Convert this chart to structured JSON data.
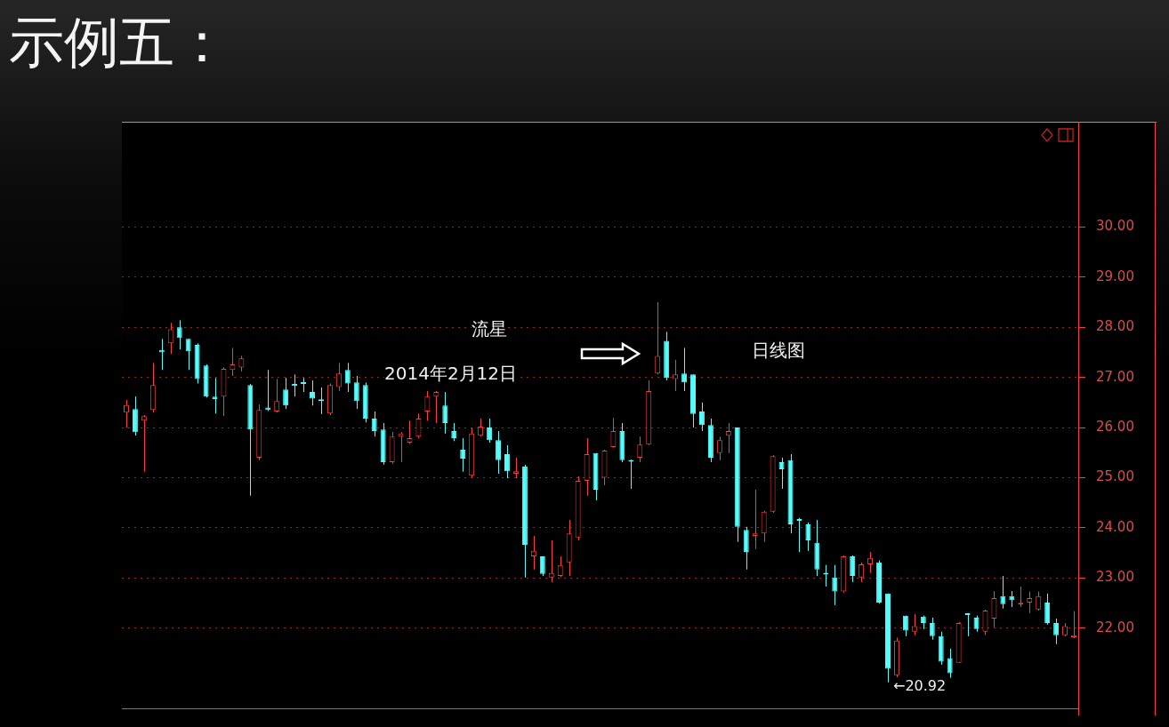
{
  "chart_data": {
    "type": "candlestick",
    "title": "示例五：",
    "annotations": [
      "流星",
      "2014年2月12日",
      "日线图",
      "←20.92"
    ],
    "categories": [
      null,
      null,
      null,
      null,
      null,
      null,
      null,
      null,
      null,
      null,
      null,
      null,
      null,
      null,
      null,
      null,
      null,
      null,
      null,
      null,
      null,
      null,
      null,
      null,
      null,
      null,
      null,
      null,
      null,
      null,
      null,
      null,
      null,
      null,
      null,
      null,
      null,
      null,
      null,
      null,
      null,
      null,
      null,
      null,
      null,
      null,
      null,
      null,
      null,
      null,
      null,
      null,
      null,
      null,
      null,
      null,
      null,
      null,
      null,
      null,
      null,
      null,
      null,
      null,
      null,
      null,
      null,
      null,
      null,
      null,
      null,
      null,
      null,
      null,
      null,
      null,
      null,
      null,
      null,
      null,
      null,
      null,
      null,
      null,
      null,
      null,
      null,
      null,
      null,
      null,
      null,
      null,
      null,
      null,
      null,
      null,
      null,
      null,
      null,
      null,
      null,
      null,
      null,
      null,
      null,
      null,
      null,
      null
    ],
    "ohlc": [
      [
        26.3,
        26.55,
        26.0,
        26.45
      ],
      [
        26.37,
        26.62,
        25.84,
        25.91
      ],
      [
        26.14,
        26.25,
        25.12,
        26.23
      ],
      [
        26.35,
        27.29,
        26.3,
        26.85
      ],
      [
        27.55,
        27.77,
        27.15,
        27.5
      ],
      [
        27.68,
        28.09,
        27.47,
        27.96
      ],
      [
        28.0,
        28.14,
        27.56,
        27.79
      ],
      [
        27.77,
        27.77,
        27.15,
        27.52
      ],
      [
        27.65,
        27.68,
        26.88,
        26.97
      ],
      [
        27.24,
        27.26,
        26.6,
        26.62
      ],
      [
        26.62,
        26.99,
        26.28,
        26.57
      ],
      [
        26.62,
        27.2,
        26.23,
        27.17
      ],
      [
        27.15,
        27.59,
        27.03,
        27.26
      ],
      [
        27.2,
        27.43,
        27.12,
        27.38
      ],
      [
        26.85,
        26.87,
        24.64,
        25.96
      ],
      [
        25.4,
        26.46,
        25.35,
        26.35
      ],
      [
        26.4,
        27.15,
        26.33,
        26.35
      ],
      [
        26.32,
        26.97,
        26.3,
        26.53
      ],
      [
        26.76,
        26.99,
        26.37,
        26.44
      ],
      [
        26.87,
        27.06,
        26.62,
        26.83
      ],
      [
        26.89,
        26.99,
        26.71,
        26.87
      ],
      [
        26.71,
        26.94,
        26.44,
        26.58
      ],
      [
        26.56,
        26.8,
        26.27,
        26.53
      ],
      [
        26.28,
        26.88,
        26.25,
        26.85
      ],
      [
        26.81,
        27.29,
        26.73,
        27.08
      ],
      [
        27.15,
        27.29,
        26.71,
        26.88
      ],
      [
        26.9,
        27.03,
        26.37,
        26.53
      ],
      [
        26.85,
        26.9,
        26.1,
        26.18
      ],
      [
        26.18,
        26.32,
        25.82,
        25.93
      ],
      [
        25.96,
        26.09,
        25.26,
        25.31
      ],
      [
        25.31,
        25.91,
        25.28,
        25.82
      ],
      [
        25.82,
        25.91,
        25.31,
        25.88
      ],
      [
        25.7,
        26.14,
        25.68,
        25.79
      ],
      [
        25.82,
        26.28,
        25.79,
        26.18
      ],
      [
        26.32,
        26.73,
        26.14,
        26.62
      ],
      [
        26.62,
        26.73,
        26.09,
        26.71
      ],
      [
        26.44,
        26.71,
        25.88,
        26.09
      ],
      [
        25.93,
        26.09,
        25.73,
        25.79
      ],
      [
        25.56,
        25.79,
        25.12,
        25.38
      ],
      [
        25.04,
        26.0,
        25.0,
        25.88
      ],
      [
        25.84,
        26.18,
        25.82,
        26.02
      ],
      [
        26.0,
        26.18,
        25.7,
        25.75
      ],
      [
        25.75,
        25.93,
        25.08,
        25.35
      ],
      [
        25.47,
        25.65,
        24.99,
        25.13
      ],
      [
        25.08,
        25.4,
        24.99,
        25.13
      ],
      [
        25.22,
        25.26,
        23.01,
        23.66
      ],
      [
        23.43,
        23.84,
        23.17,
        23.54
      ],
      [
        23.43,
        23.43,
        23.04,
        23.08
      ],
      [
        23.01,
        23.75,
        22.92,
        23.1
      ],
      [
        23.04,
        23.43,
        23.02,
        23.26
      ],
      [
        23.31,
        24.16,
        23.04,
        23.89
      ],
      [
        23.81,
        25.03,
        23.75,
        24.94
      ],
      [
        24.94,
        25.79,
        24.64,
        25.47
      ],
      [
        25.49,
        25.49,
        24.55,
        24.76
      ],
      [
        25.0,
        25.56,
        24.85,
        25.54
      ],
      [
        25.61,
        26.19,
        25.6,
        25.93
      ],
      [
        25.93,
        26.09,
        25.31,
        25.35
      ],
      [
        25.35,
        25.36,
        24.78,
        25.32
      ],
      [
        25.4,
        25.82,
        25.31,
        25.66
      ],
      [
        25.66,
        26.94,
        25.65,
        26.73
      ],
      [
        27.08,
        28.5,
        27.06,
        27.43
      ],
      [
        27.73,
        27.91,
        26.94,
        26.99
      ],
      [
        26.97,
        27.35,
        26.73,
        27.06
      ],
      [
        27.08,
        27.59,
        26.73,
        26.9
      ],
      [
        27.06,
        27.06,
        26.0,
        26.27
      ],
      [
        26.32,
        26.5,
        25.93,
        26.05
      ],
      [
        26.05,
        26.18,
        25.31,
        25.4
      ],
      [
        25.49,
        25.82,
        25.35,
        25.75
      ],
      [
        25.84,
        26.09,
        25.49,
        25.93
      ],
      [
        26.0,
        26.0,
        23.72,
        24.02
      ],
      [
        23.96,
        24.02,
        23.17,
        23.52
      ],
      [
        23.84,
        24.76,
        23.58,
        23.89
      ],
      [
        23.89,
        24.34,
        23.72,
        24.32
      ],
      [
        24.32,
        25.45,
        24.3,
        25.43
      ],
      [
        25.31,
        25.4,
        24.78,
        25.17
      ],
      [
        25.35,
        25.47,
        23.89,
        24.07
      ],
      [
        24.17,
        24.2,
        23.52,
        24.14
      ],
      [
        24.07,
        24.11,
        23.54,
        23.75
      ],
      [
        23.7,
        24.16,
        23.04,
        23.17
      ],
      [
        23.1,
        23.26,
        22.83,
        23.07
      ],
      [
        23.01,
        23.26,
        22.46,
        22.73
      ],
      [
        22.73,
        23.45,
        22.71,
        23.43
      ],
      [
        23.43,
        23.45,
        22.92,
        23.04
      ],
      [
        23.01,
        23.31,
        22.92,
        23.27
      ],
      [
        23.27,
        23.52,
        23.1,
        23.4
      ],
      [
        23.31,
        23.35,
        22.49,
        22.51
      ],
      [
        22.69,
        22.69,
        20.92,
        21.19
      ],
      [
        21.06,
        21.81,
        21.01,
        21.75
      ],
      [
        22.25,
        22.25,
        21.84,
        21.95
      ],
      [
        21.93,
        22.28,
        21.86,
        22.04
      ],
      [
        22.23,
        22.25,
        21.98,
        22.1
      ],
      [
        22.1,
        22.21,
        21.77,
        21.84
      ],
      [
        21.84,
        21.93,
        21.27,
        21.33
      ],
      [
        21.4,
        21.59,
        21.01,
        21.1
      ],
      [
        21.31,
        22.12,
        21.31,
        22.1
      ],
      [
        22.28,
        22.3,
        21.84,
        22.26
      ],
      [
        22.21,
        22.25,
        21.93,
        21.98
      ],
      [
        21.93,
        22.37,
        21.86,
        22.35
      ],
      [
        22.19,
        22.74,
        22.02,
        22.6
      ],
      [
        22.64,
        23.04,
        22.39,
        22.48
      ],
      [
        22.64,
        22.74,
        22.42,
        22.56
      ],
      [
        22.47,
        22.83,
        22.42,
        22.5
      ],
      [
        22.51,
        22.73,
        22.3,
        22.6
      ],
      [
        22.37,
        22.73,
        22.35,
        22.64
      ],
      [
        22.51,
        22.69,
        22.07,
        22.1
      ],
      [
        22.1,
        22.19,
        21.68,
        21.86
      ],
      [
        21.86,
        22.1,
        21.84,
        22.04
      ],
      [
        21.82,
        22.34,
        21.8,
        21.86
      ]
    ],
    "colors": [
      "#ff3b3b",
      "#54fcfc",
      "#ff3b3b",
      "#ff3b3b",
      "#54fcfc",
      "#ff3b3b",
      "#54fcfc",
      "#54fcfc",
      "#54fcfc",
      "#54fcfc",
      "#54fcfc",
      "#ff3b3b",
      "#ff3b3b",
      "#ff3b3b",
      "#54fcfc",
      "#ff3b3b",
      "#54fcfc",
      "#ff3b3b",
      "#54fcfc",
      "#54fcfc",
      "#54fcfc",
      "#54fcfc",
      "#54fcfc",
      "#ff3b3b",
      "#ff3b3b",
      "#54fcfc",
      "#54fcfc",
      "#54fcfc",
      "#54fcfc",
      "#54fcfc",
      "#ff3b3b",
      "#ff3b3b",
      "#ff3b3b",
      "#ff3b3b",
      "#ff3b3b",
      "#ff3b3b",
      "#54fcfc",
      "#54fcfc",
      "#54fcfc",
      "#ff3b3b",
      "#ff3b3b",
      "#54fcfc",
      "#54fcfc",
      "#54fcfc",
      "#ff3b3b",
      "#54fcfc",
      "#ff3b3b",
      "#54fcfc",
      "#ff3b3b",
      "#ff3b3b",
      "#ff3b3b",
      "#ff3b3b",
      "#ff3b3b",
      "#54fcfc",
      "#ff3b3b",
      "#ff3b3b",
      "#54fcfc",
      "#54fcfc",
      "#ff3b3b",
      "#ff3b3b",
      "#ff3b3b",
      "#54fcfc",
      "#ff3b3b",
      "#54fcfc",
      "#54fcfc",
      "#54fcfc",
      "#54fcfc",
      "#ff3b3b",
      "#ff3b3b",
      "#54fcfc",
      "#54fcfc",
      "#ff3b3b",
      "#ff3b3b",
      "#ff3b3b",
      "#54fcfc",
      "#54fcfc",
      "#54fcfc",
      "#54fcfc",
      "#54fcfc",
      "#54fcfc",
      "#54fcfc",
      "#ff3b3b",
      "#54fcfc",
      "#ff3b3b",
      "#ff3b3b",
      "#54fcfc",
      "#54fcfc",
      "#ff3b3b",
      "#54fcfc",
      "#ff3b3b",
      "#54fcfc",
      "#54fcfc",
      "#54fcfc",
      "#54fcfc",
      "#ff3b3b",
      "#54fcfc",
      "#54fcfc",
      "#ff3b3b",
      "#ff3b3b",
      "#54fcfc",
      "#54fcfc",
      "#ff3b3b",
      "#ff3b3b",
      "#ff3b3b",
      "#54fcfc",
      "#54fcfc",
      "#ff3b3b",
      "#ff3b3b"
    ],
    "ylim": [
      20.4,
      32.1
    ],
    "yticks": [
      {
        "value": 22,
        "label": "22.00"
      },
      {
        "value": 23,
        "label": "23.00"
      },
      {
        "value": 24,
        "label": "24.00"
      },
      {
        "value": 25,
        "label": "25.00"
      },
      {
        "value": 26,
        "label": "26.00"
      },
      {
        "value": 27,
        "label": "27.00"
      },
      {
        "value": 28,
        "label": "28.00"
      },
      {
        "value": 29,
        "label": "29.00"
      },
      {
        "value": 30,
        "label": "30.00"
      }
    ],
    "grid": "y",
    "legend": false,
    "tick_labels": "y"
  }
}
